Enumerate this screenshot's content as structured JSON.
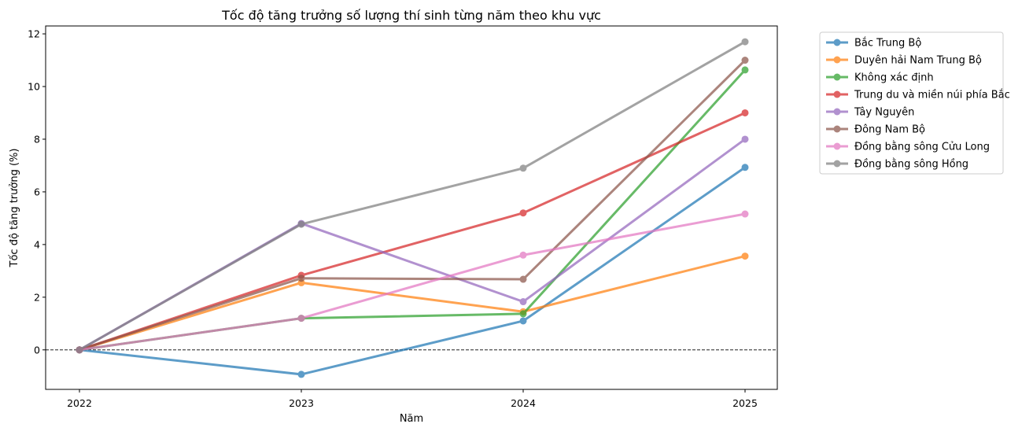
{
  "chart_data": {
    "type": "line",
    "title": "Tốc độ tăng trưởng số lượng thí sinh từng năm theo khu vực",
    "xlabel": "Năm",
    "ylabel": "Tốc độ tăng trưởng (%)",
    "x": [
      "2022",
      "2023",
      "2024",
      "2025"
    ],
    "ylim": [
      -1.5,
      12.3
    ],
    "yticks": [
      "0",
      "2",
      "4",
      "6",
      "8",
      "10",
      "12"
    ],
    "grid": false,
    "reference_line": {
      "y": 0,
      "style": "dashed",
      "color": "#000000"
    },
    "legend_position": "outside-top-right",
    "series": [
      {
        "name": "Bắc Trung Bộ",
        "color": "#1f77b4",
        "values": [
          0,
          -0.93,
          1.1,
          6.93
        ]
      },
      {
        "name": "Duyên hải Nam Trung Bộ",
        "color": "#ff7f0e",
        "values": [
          0,
          2.55,
          1.45,
          3.56
        ]
      },
      {
        "name": "Không xác định",
        "color": "#2ca02c",
        "values": [
          0,
          1.2,
          1.37,
          10.63
        ]
      },
      {
        "name": "Trung du và miền núi phía Bắc",
        "color": "#d62728",
        "values": [
          0,
          2.83,
          5.2,
          9.0
        ]
      },
      {
        "name": "Tây Nguyên",
        "color": "#9467bd",
        "values": [
          0,
          4.8,
          1.83,
          8.0
        ]
      },
      {
        "name": "Đông Nam Bộ",
        "color": "#8c564b",
        "values": [
          0,
          2.72,
          2.68,
          11.0
        ]
      },
      {
        "name": "Đồng bằng sông Cửu Long",
        "color": "#e377c2",
        "values": [
          0,
          1.2,
          3.6,
          5.16
        ]
      },
      {
        "name": "Đồng bằng sông Hồng",
        "color": "#7f7f7f",
        "values": [
          0,
          4.77,
          6.9,
          11.7
        ]
      }
    ]
  }
}
